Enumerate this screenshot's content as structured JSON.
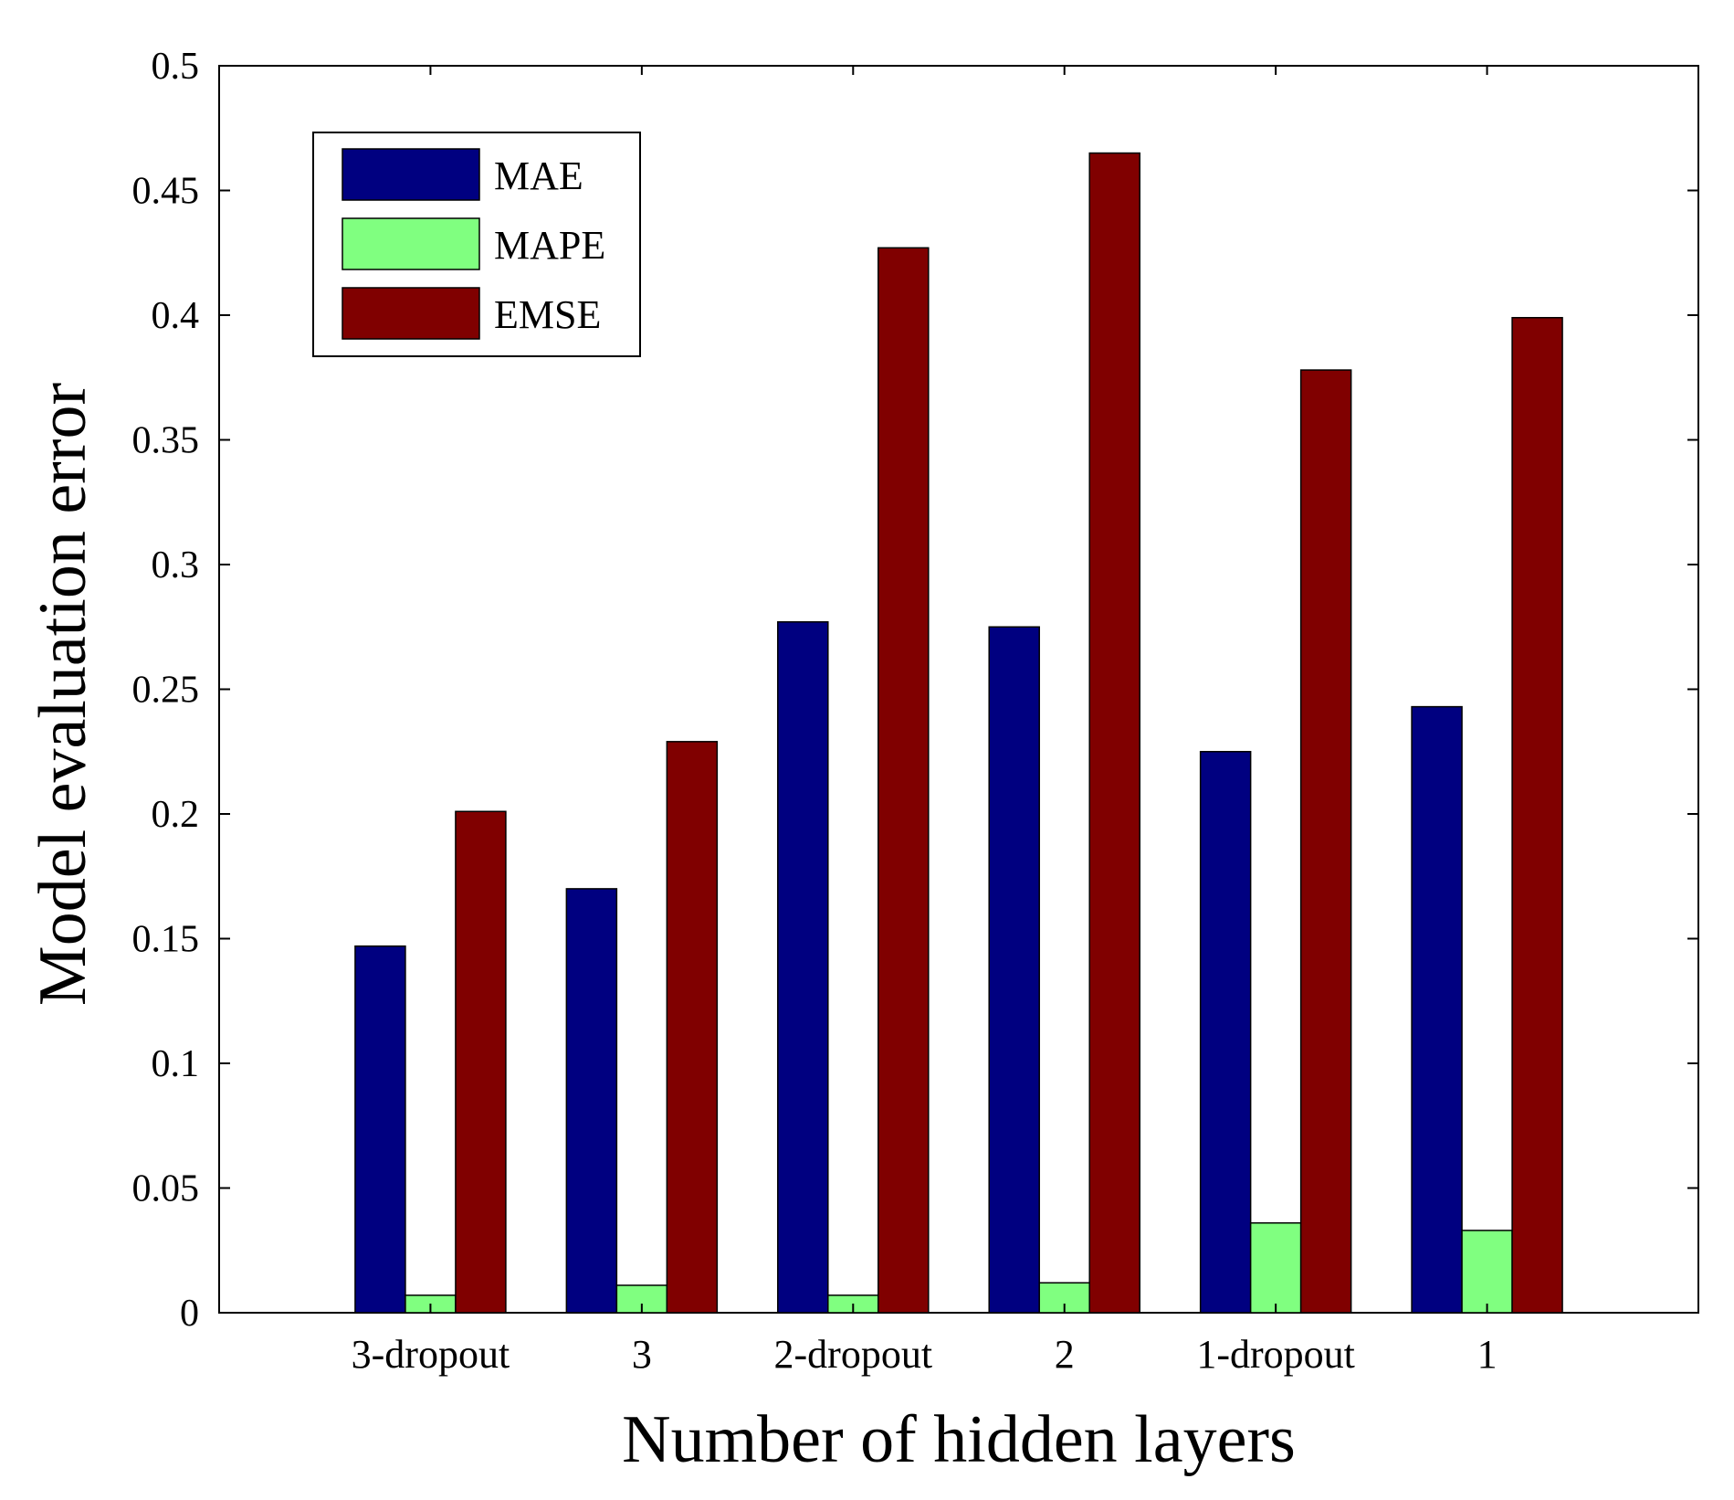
{
  "chart_data": {
    "type": "bar",
    "title": "",
    "xlabel": "Number of hidden layers",
    "ylabel": "Model evaluation error",
    "categories": [
      "3-dropout",
      "3",
      "2-dropout",
      "2",
      "1-dropout",
      "1"
    ],
    "series": [
      {
        "name": "MAE",
        "color": "#000080",
        "values": [
          0.147,
          0.17,
          0.277,
          0.275,
          0.225,
          0.243
        ]
      },
      {
        "name": "MAPE",
        "color": "#80ff80",
        "values": [
          0.007,
          0.011,
          0.007,
          0.012,
          0.036,
          0.033
        ]
      },
      {
        "name": "EMSE",
        "color": "#800000",
        "values": [
          0.201,
          0.229,
          0.427,
          0.465,
          0.378,
          0.399
        ]
      }
    ],
    "ylim": [
      0,
      0.5
    ],
    "yticks": [
      "0",
      "0.05",
      "0.1",
      "0.15",
      "0.2",
      "0.25",
      "0.3",
      "0.35",
      "0.4",
      "0.45",
      "0.5"
    ],
    "grid": false,
    "legend_position": "top-left"
  }
}
